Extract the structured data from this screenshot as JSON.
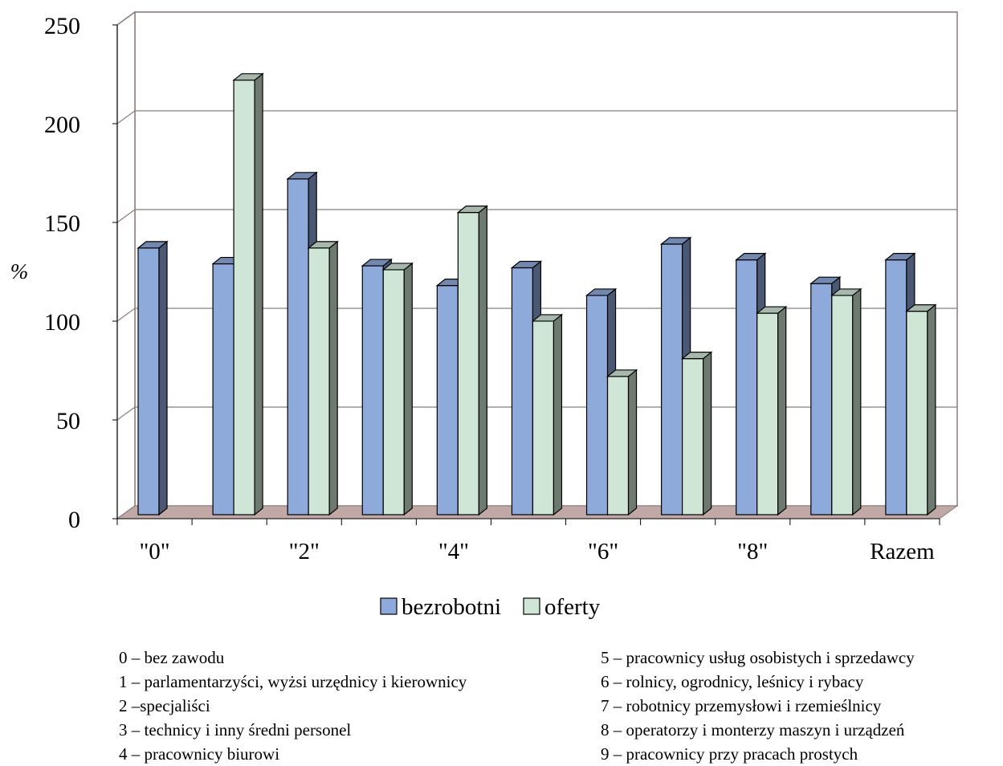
{
  "chart_data": {
    "type": "bar",
    "ylabel": "%",
    "xlabel": "",
    "ylim": [
      0,
      250
    ],
    "yticks": [
      "0",
      "50",
      "100",
      "150",
      "200",
      "250"
    ],
    "grid": true,
    "legend_placement": "bottom",
    "categories": [
      "\"0\"",
      "\"1\"",
      "\"2\"",
      "\"3\"",
      "\"4\"",
      "\"5\"",
      "\"6\"",
      "\"7\"",
      "\"8\"",
      "\"9\"",
      "Razem"
    ],
    "category_labels_shown": [
      "\"0\"",
      "",
      "\"2\"",
      "",
      "\"4\"",
      "",
      "\"6\"",
      "",
      "\"8\"",
      "",
      "Razem"
    ],
    "series": [
      {
        "name": "bezrobotni",
        "color": "#8eaadb",
        "values": [
          135,
          127,
          170,
          126,
          116,
          125,
          111,
          137,
          129,
          117,
          129
        ]
      },
      {
        "name": "oferty",
        "color": "#cfe6d6",
        "values": [
          0,
          220,
          135,
          124,
          153,
          98,
          70,
          79,
          102,
          111,
          103
        ]
      }
    ]
  },
  "notes": {
    "left": [
      "0 – bez zawodu",
      "1 – parlamentarzyści, wyżsi urzędnicy i kierownicy",
      "2 –specjaliści",
      "3 – technicy i inny średni personel",
      "4 – pracownicy biurowi"
    ],
    "right": [
      "5 – pracownicy usług osobistych i sprzedawcy",
      "6 – rolnicy, ogrodnicy, leśnicy i rybacy",
      "7 – robotnicy przemysłowi i rzemieślnicy",
      "8 – operatorzy i monterzy maszyn i urządzeń",
      "9 – pracownicy przy pracach prostych"
    ]
  }
}
